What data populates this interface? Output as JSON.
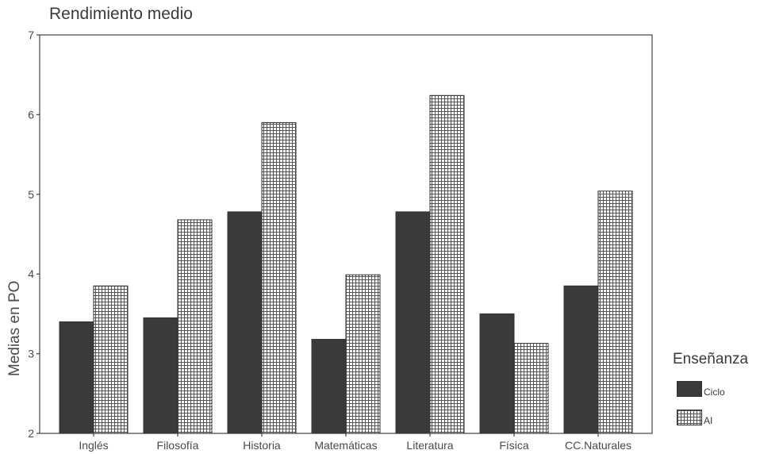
{
  "chart_data": {
    "type": "bar",
    "title": "Rendimiento medio",
    "ylabel": "Medias en PO",
    "xlabel": "",
    "ylim": [
      2,
      7
    ],
    "yticks": [
      "2",
      "3",
      "4",
      "5",
      "6",
      "7"
    ],
    "categories": [
      "Inglés",
      "Filosofía",
      "Historia",
      "Matemáticas",
      "Literatura",
      "Física",
      "CC.Naturales"
    ],
    "series": [
      {
        "name": "Ciclo",
        "values": [
          3.4,
          3.45,
          4.78,
          3.18,
          4.78,
          3.5,
          3.85
        ],
        "color": "#3a3a3a",
        "pattern": "solid"
      },
      {
        "name": "AI",
        "values": [
          3.85,
          4.68,
          5.9,
          3.99,
          6.24,
          3.13,
          5.04
        ],
        "color": "#ffffff",
        "pattern": "grid"
      }
    ],
    "legend": {
      "title": "Enseñanza",
      "position": "right"
    },
    "grid": false
  }
}
